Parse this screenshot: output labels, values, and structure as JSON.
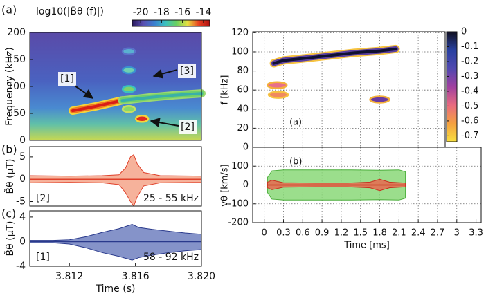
{
  "chart_data": [
    {
      "type": "heatmap",
      "panel_label": "(a)",
      "colorbar_label": "log10(|B̃θ (f)|)",
      "ylabel": "Frequency (kHz)",
      "xlim": [
        3.8096,
        3.82
      ],
      "ylim": [
        0,
        200
      ],
      "yticks": [
        0,
        50,
        100,
        150,
        200
      ],
      "clim": [
        -20.8,
        -13.4
      ],
      "cticks": [
        -20,
        -18,
        -16,
        -14
      ],
      "colormap": [
        "#2a1a5e",
        "#5a4fb0",
        "#3a7fd0",
        "#3ac0c0",
        "#6ad060",
        "#e8e040",
        "#e84020",
        "#b01010"
      ],
      "ridges": [
        {
          "x": [
            3.8122,
            3.8136,
            3.8152
          ],
          "y": [
            55,
            63,
            74
          ],
          "colors": [
            "#f5d53a",
            "#f07a20",
            "#d81e18"
          ]
        },
        {
          "x": [
            3.8152,
            3.817,
            3.8185,
            3.82
          ],
          "y": [
            74,
            80,
            84,
            87
          ],
          "colors": [
            "#9ad870",
            "#6fd06a",
            "#3ab0a8"
          ]
        }
      ],
      "blobs": {
        "x": [
          3.8164,
          3.8156,
          3.8156,
          3.8156,
          3.8156
        ],
        "y": [
          40,
          58,
          95,
          130,
          165
        ],
        "colors": [
          "#e02a20",
          "#8ad86a",
          "#7ed36b",
          "#6fd0b0",
          "#5ab0d0"
        ],
        "edges": [
          "#f5d53a",
          "#c8e060",
          "#3ac0c0",
          "#3a90d0",
          "#5a70c8"
        ]
      },
      "annotations": [
        "[1]",
        "[2]",
        "[3]"
      ]
    },
    {
      "type": "band",
      "panel_label": "(b)",
      "ylabel": "B̃θ (μT)",
      "xlim": [
        3.8096,
        3.82
      ],
      "ylim": [
        -6,
        7.3
      ],
      "yticks": [
        -5,
        0,
        5
      ],
      "series": [
        {
          "color": "#e0402a",
          "fill": "#f4a58a",
          "x": [
            3.8096,
            3.812,
            3.814,
            3.815,
            3.8154,
            3.8157,
            3.8159,
            3.8161,
            3.8165,
            3.8175,
            3.82
          ],
          "upper": [
            0.8,
            0.7,
            0.8,
            1.0,
            2.5,
            5.0,
            5.5,
            3.5,
            1.5,
            0.8,
            0.7
          ],
          "lower": [
            -0.8,
            -0.7,
            -0.8,
            -1.2,
            -3.0,
            -5.0,
            -6.0,
            -4.0,
            -1.5,
            -0.8,
            -0.7
          ]
        }
      ],
      "annotations": [
        "[2]",
        "25 - 55 kHz"
      ]
    },
    {
      "type": "band",
      "panel_label": "(c)",
      "ylabel": "B̃θ (μT)",
      "xlabel": "Time (s)",
      "xlim": [
        3.8096,
        3.82
      ],
      "ylim": [
        -4,
        5
      ],
      "yticks": [
        -4,
        0,
        4
      ],
      "xticks": [
        3.812,
        3.816,
        {
          "value": 3.82,
          "label": "3.820"
        }
      ],
      "series": [
        {
          "color": "#2a3a8c",
          "fill": "#7080c0",
          "x": [
            3.8096,
            3.811,
            3.812,
            3.813,
            3.814,
            3.815,
            3.8158,
            3.8162,
            3.817,
            3.818,
            3.819,
            3.82
          ],
          "upper": [
            0.2,
            0.2,
            0.3,
            0.8,
            1.5,
            2.1,
            2.8,
            2.3,
            2.0,
            1.7,
            1.4,
            1.2
          ],
          "lower": [
            -0.2,
            -0.2,
            -0.4,
            -1.0,
            -1.8,
            -2.4,
            -3.0,
            -2.6,
            -2.2,
            -1.8,
            -1.5,
            -1.3
          ]
        }
      ],
      "annotations": [
        "[1]",
        "58 - 92 kHz"
      ]
    },
    {
      "type": "heatmap",
      "panel_label": "(a)",
      "ylabel": "f [kHz]",
      "xlim": [
        -0.18,
        2.82
      ],
      "ylim": [
        0,
        121
      ],
      "yticks": [
        0,
        20,
        40,
        60,
        80,
        100,
        120
      ],
      "grid": true,
      "clim": [
        -0.74,
        0
      ],
      "cticks": [
        0,
        -0.1,
        -0.2,
        -0.3,
        -0.4,
        -0.5,
        -0.6,
        -0.7
      ],
      "colormap": [
        "#f8e040",
        "#f4a040",
        "#e86a80",
        "#a040a0",
        "#5048b0",
        "#2840a0",
        "#101020"
      ],
      "ridges": [
        {
          "x": [
            0.15,
            0.3,
            0.6,
            1.0,
            1.4,
            1.8,
            2.05
          ],
          "y": [
            88,
            91,
            93,
            96,
            99,
            101,
            103
          ],
          "colors": [
            "#f6c340",
            "#5a3fa0",
            "#101030"
          ]
        }
      ],
      "blobs": {
        "x": [
          0.2,
          0.22,
          1.8
        ],
        "y": [
          65,
          55,
          50
        ],
        "colors": [
          "#e8708a",
          "#f08a60",
          "#6a3aa0"
        ],
        "edges": [
          "#f4b13a",
          "#f6c340",
          "#f4b13a"
        ]
      }
    },
    {
      "type": "band",
      "panel_label": "(b)",
      "ylabel": "vθ [km/s]",
      "xlabel": "Time [ms]",
      "xlim": [
        -0.18,
        3.38
      ],
      "ylim": [
        -200,
        200
      ],
      "yticks": [
        -200,
        -100,
        0,
        100
      ],
      "grid": true,
      "xticks": [
        0,
        0.3,
        0.6,
        0.9,
        1.2,
        1.5,
        1.8,
        2.1,
        2.4,
        2.7,
        3,
        3.3
      ],
      "series": [
        {
          "color": "#4cae3c",
          "fill": "#8ad878",
          "x": [
            0.05,
            0.12,
            0.3,
            0.8,
            1.3,
            1.8,
            2.1,
            2.2
          ],
          "upper": [
            40,
            75,
            80,
            80,
            80,
            78,
            80,
            70
          ],
          "lower": [
            -40,
            -75,
            -80,
            -80,
            -80,
            -78,
            -80,
            -70
          ]
        },
        {
          "color": "#c83020",
          "fill": "#e86a50",
          "x": [
            0.05,
            0.12,
            0.3,
            0.8,
            1.3,
            1.65,
            1.8,
            1.95,
            2.2
          ],
          "upper": [
            15,
            25,
            12,
            10,
            10,
            15,
            30,
            15,
            10
          ],
          "lower": [
            -15,
            -25,
            -12,
            -10,
            -10,
            -15,
            -30,
            -15,
            -10
          ]
        }
      ]
    }
  ]
}
